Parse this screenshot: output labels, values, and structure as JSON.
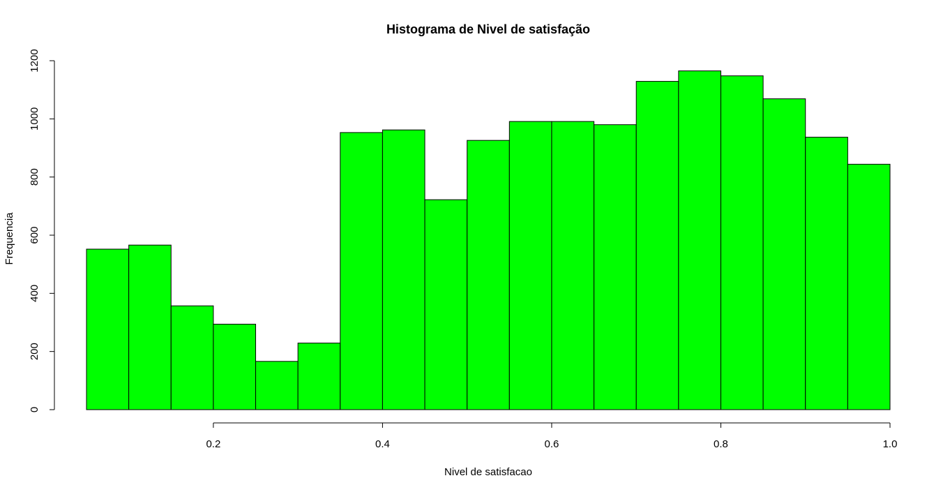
{
  "colors": {
    "bar_fill": "#00ff00",
    "bar_stroke": "#000000",
    "background": "#ffffff"
  },
  "chart_data": {
    "type": "bar",
    "title": "Histograma de Nivel de satisfação",
    "xlabel": "Nivel de satisfacao",
    "ylabel": "Frequencia",
    "bin_edges": [
      0.05,
      0.1,
      0.15,
      0.2,
      0.25,
      0.3,
      0.35,
      0.4,
      0.45,
      0.5,
      0.55,
      0.6,
      0.65,
      0.7,
      0.75,
      0.8,
      0.85,
      0.9,
      0.95,
      1.0
    ],
    "values": [
      552,
      566,
      357,
      294,
      166,
      229,
      953,
      962,
      722,
      926,
      991,
      991,
      980,
      1129,
      1165,
      1148,
      1069,
      937,
      844
    ],
    "xlim": [
      0.05,
      1.0
    ],
    "ylim": [
      0,
      1200
    ],
    "x_ticks": [
      {
        "value": 0.2,
        "label": "0.2"
      },
      {
        "value": 0.4,
        "label": "0.4"
      },
      {
        "value": 0.6,
        "label": "0.6"
      },
      {
        "value": 0.8,
        "label": "0.8"
      },
      {
        "value": 1.0,
        "label": "1.0"
      }
    ],
    "y_ticks": [
      {
        "value": 0,
        "label": "0"
      },
      {
        "value": 200,
        "label": "200"
      },
      {
        "value": 400,
        "label": "400"
      },
      {
        "value": 600,
        "label": "600"
      },
      {
        "value": 800,
        "label": "800"
      },
      {
        "value": 1000,
        "label": "1000"
      },
      {
        "value": 1200,
        "label": "1200"
      }
    ],
    "grid": false,
    "legend": false
  }
}
